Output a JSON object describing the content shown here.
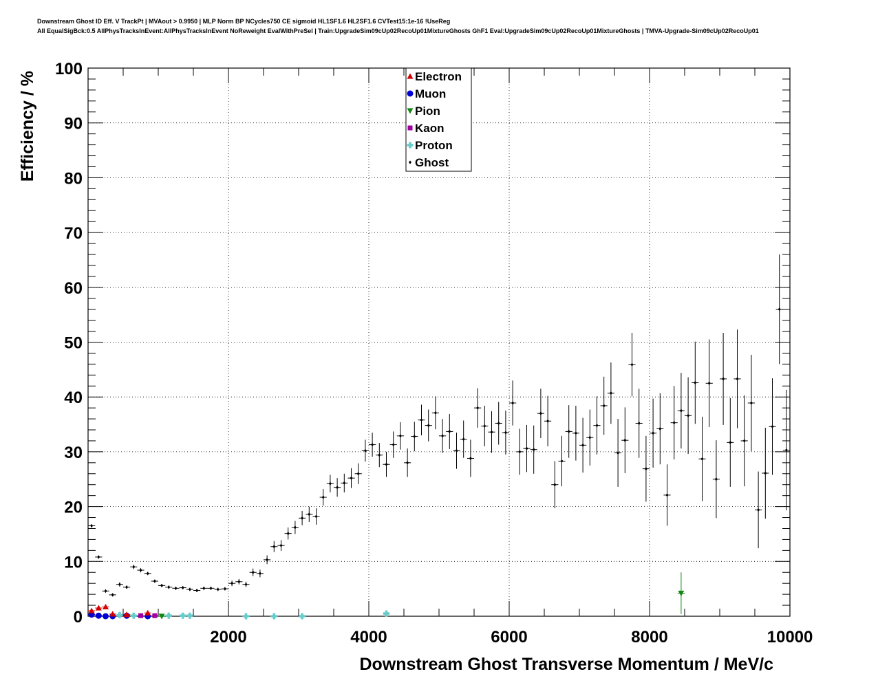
{
  "title_lines": [
    "Downstream Ghost ID Eff. V TrackPt | MVAout > 0.9950 | MLP Norm BP NCycles750 CE sigmoid HL1SF1.6 HL2SF1.6 CVTest15:1e-16 !UseReg",
    "All EqualSigBck:0.5 AllPhysTracksInEvent:AllPhysTracksInEvent NoReweight EvalWithPreSel | Train:UpgradeSim09cUp02RecoUp01MixtureGhosts GhF1 Eval:UpgradeSim09cUp02RecoUp01MixtureGhosts | TMVA-Upgrade-Sim09cUp02RecoUp01"
  ],
  "chart_data": {
    "type": "scatter",
    "xlabel": "Downstream Ghost Transverse Momentum / MeV/c",
    "ylabel": "Efficiency / %",
    "xlim": [
      0,
      10000
    ],
    "ylim": [
      0,
      100
    ],
    "x_ticks": [
      2000,
      4000,
      6000,
      8000,
      10000
    ],
    "y_ticks": [
      0,
      10,
      20,
      30,
      40,
      50,
      60,
      70,
      80,
      90,
      100
    ],
    "grid": true,
    "legend_position": "top-center",
    "series": [
      {
        "name": "Electron",
        "color": "#d40000",
        "marker": "triangle-up",
        "points": [
          [
            50,
            1.0
          ],
          [
            150,
            1.5
          ],
          [
            250,
            1.7
          ],
          [
            350,
            0.4
          ],
          [
            550,
            0.3
          ],
          [
            850,
            0.6
          ]
        ]
      },
      {
        "name": "Muon",
        "color": "#0000d4",
        "marker": "circle",
        "points": [
          [
            50,
            0.3
          ],
          [
            150,
            0.1
          ],
          [
            250,
            0.0
          ],
          [
            350,
            0.0
          ],
          [
            550,
            0.1
          ],
          [
            850,
            0.0
          ]
        ]
      },
      {
        "name": "Pion",
        "color": "#118811",
        "marker": "triangle-down",
        "points": [
          [
            1050,
            0.0
          ],
          [
            8450,
            4.2
          ]
        ],
        "errors": [
          0.3,
          3.8
        ]
      },
      {
        "name": "Kaon",
        "color": "#a000a0",
        "marker": "square",
        "points": [
          [
            750,
            0.1
          ],
          [
            950,
            0.1
          ]
        ]
      },
      {
        "name": "Proton",
        "color": "#66cccc",
        "marker": "cross",
        "points": [
          [
            450,
            0.2
          ],
          [
            650,
            0.1
          ],
          [
            1150,
            0.1
          ],
          [
            1350,
            0.1
          ],
          [
            1450,
            0.1
          ],
          [
            2250,
            0.0
          ],
          [
            2650,
            0.0
          ],
          [
            3050,
            0.0
          ],
          [
            4250,
            0.5
          ]
        ]
      },
      {
        "name": "Ghost",
        "color": "#000000",
        "marker": "diamond",
        "points": [
          [
            50,
            16.5
          ],
          [
            150,
            10.8
          ],
          [
            250,
            4.6
          ],
          [
            350,
            3.9
          ],
          [
            450,
            5.8
          ],
          [
            550,
            5.3
          ],
          [
            650,
            9.0
          ],
          [
            750,
            8.4
          ],
          [
            850,
            7.8
          ],
          [
            950,
            6.4
          ],
          [
            1050,
            5.6
          ],
          [
            1150,
            5.3
          ],
          [
            1250,
            5.1
          ],
          [
            1350,
            5.2
          ],
          [
            1450,
            4.9
          ],
          [
            1550,
            4.7
          ],
          [
            1650,
            5.1
          ],
          [
            1750,
            5.1
          ],
          [
            1850,
            4.9
          ],
          [
            1950,
            5.0
          ],
          [
            2050,
            6.0
          ],
          [
            2150,
            6.3
          ],
          [
            2250,
            5.8
          ],
          [
            2350,
            8.0
          ],
          [
            2450,
            7.8
          ],
          [
            2550,
            10.3
          ],
          [
            2650,
            12.7
          ],
          [
            2750,
            12.9
          ],
          [
            2850,
            15.1
          ],
          [
            2950,
            16.2
          ],
          [
            3050,
            17.9
          ],
          [
            3150,
            18.6
          ],
          [
            3250,
            18.2
          ],
          [
            3350,
            21.7
          ],
          [
            3450,
            24.2
          ],
          [
            3550,
            23.5
          ],
          [
            3650,
            24.3
          ],
          [
            3750,
            25.2
          ],
          [
            3850,
            26.0
          ],
          [
            3950,
            30.2
          ],
          [
            4050,
            31.3
          ],
          [
            4150,
            29.4
          ],
          [
            4250,
            27.7
          ],
          [
            4350,
            31.3
          ],
          [
            4450,
            32.9
          ],
          [
            4550,
            28.0
          ],
          [
            4650,
            32.8
          ],
          [
            4750,
            35.8
          ],
          [
            4850,
            34.8
          ],
          [
            4950,
            37.1
          ],
          [
            5050,
            32.9
          ],
          [
            5150,
            33.7
          ],
          [
            5250,
            30.2
          ],
          [
            5350,
            32.3
          ],
          [
            5450,
            28.8
          ],
          [
            5550,
            38.0
          ],
          [
            5650,
            34.7
          ],
          [
            5750,
            33.6
          ],
          [
            5850,
            35.2
          ],
          [
            5950,
            33.5
          ],
          [
            6050,
            38.9
          ],
          [
            6150,
            30.0
          ],
          [
            6250,
            30.6
          ],
          [
            6350,
            30.4
          ],
          [
            6450,
            37.0
          ],
          [
            6550,
            35.6
          ],
          [
            6650,
            24.0
          ],
          [
            6750,
            28.3
          ],
          [
            6850,
            33.7
          ],
          [
            6950,
            33.4
          ],
          [
            7050,
            31.2
          ],
          [
            7150,
            32.6
          ],
          [
            7250,
            34.8
          ],
          [
            7350,
            38.4
          ],
          [
            7450,
            40.7
          ],
          [
            7550,
            29.8
          ],
          [
            7650,
            32.1
          ],
          [
            7750,
            45.9
          ],
          [
            7850,
            35.2
          ],
          [
            7950,
            26.9
          ],
          [
            8050,
            33.4
          ],
          [
            8150,
            34.2
          ],
          [
            8250,
            22.1
          ],
          [
            8350,
            35.3
          ],
          [
            8450,
            37.5
          ],
          [
            8550,
            36.6
          ],
          [
            8650,
            42.6
          ],
          [
            8750,
            28.7
          ],
          [
            8850,
            42.5
          ],
          [
            8950,
            25.0
          ],
          [
            9050,
            43.3
          ],
          [
            9150,
            31.7
          ],
          [
            9250,
            43.3
          ],
          [
            9350,
            32.0
          ],
          [
            9450,
            38.9
          ],
          [
            9550,
            19.4
          ],
          [
            9650,
            26.1
          ],
          [
            9750,
            34.6
          ],
          [
            9850,
            56.0
          ],
          [
            9950,
            30.3
          ]
        ],
        "errors": [
          0.3,
          0.3,
          0.3,
          0.3,
          0.4,
          0.3,
          0.4,
          0.4,
          0.3,
          0.3,
          0.3,
          0.3,
          0.3,
          0.3,
          0.3,
          0.3,
          0.3,
          0.3,
          0.3,
          0.3,
          0.5,
          0.5,
          0.5,
          0.7,
          0.7,
          0.8,
          1.0,
          1.0,
          1.1,
          1.2,
          1.3,
          1.4,
          1.5,
          1.5,
          1.6,
          1.7,
          1.7,
          1.8,
          1.9,
          2.0,
          2.2,
          2.2,
          2.3,
          2.4,
          2.5,
          2.6,
          2.7,
          2.8,
          2.9,
          3.0,
          3.1,
          3.2,
          3.3,
          3.4,
          3.4,
          3.6,
          3.7,
          3.8,
          3.9,
          4.0,
          4.1,
          4.2,
          4.3,
          4.4,
          4.5,
          4.6,
          4.3,
          4.6,
          4.8,
          5.0,
          5.0,
          5.1,
          5.3,
          5.3,
          5.6,
          6.2,
          6.0,
          5.8,
          6.3,
          6.0,
          6.3,
          6.5,
          5.6,
          6.7,
          6.9,
          7.0,
          7.5,
          7.7,
          8.0,
          7.1,
          8.4,
          8.1,
          9.0,
          8.3,
          8.8,
          7.0,
          8.3,
          8.8,
          10.0,
          11.0
        ]
      }
    ]
  }
}
